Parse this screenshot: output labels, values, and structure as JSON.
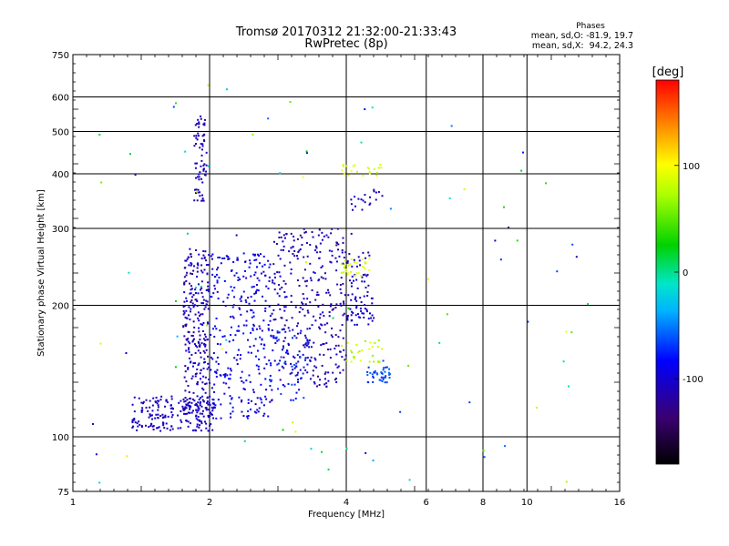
{
  "chart_data": {
    "type": "scatter",
    "title_line1": "Tromsø 20170312 21:32:00-21:33:43",
    "title_line2": "RwPretec (8p)",
    "xlabel": "Frequency [MHz]",
    "ylabel": "Stationary phase Virtual Height [km]",
    "x_scale": "log2",
    "y_scale": "log",
    "xlim": [
      1,
      16
    ],
    "ylim": [
      75,
      750
    ],
    "x_ticks": [
      1,
      2,
      4,
      6,
      8,
      10,
      16
    ],
    "y_ticks": [
      75,
      100,
      200,
      300,
      400,
      500,
      600,
      750
    ],
    "grid": true,
    "stats": {
      "heading": "Phases",
      "line_o": "mean, sd,O: -81.9, 19.7",
      "line_x": "mean, sd,X:  94.2, 24.3"
    },
    "colorbar": {
      "unit": "[deg]",
      "range": [
        -180,
        180
      ],
      "ticks": [
        100,
        0,
        -100
      ]
    },
    "clusters": [
      {
        "x": [
          1.35,
          2.05
        ],
        "y": [
          103,
          124
        ],
        "phase": [
          -115,
          -95
        ],
        "n": 200
      },
      {
        "x": [
          1.75,
          2.0
        ],
        "y": [
          115,
          270
        ],
        "phase": [
          -125,
          -90
        ],
        "n": 260
      },
      {
        "x": [
          1.85,
          1.97
        ],
        "y": [
          345,
          545
        ],
        "phase": [
          -125,
          -95
        ],
        "n": 70
      },
      {
        "x": [
          2.0,
          2.75
        ],
        "y": [
          110,
          265
        ],
        "phase": [
          -110,
          -75
        ],
        "n": 300
      },
      {
        "x": [
          2.75,
          4.0
        ],
        "y": [
          130,
          300
        ],
        "phase": [
          -125,
          -95
        ],
        "n": 330
      },
      {
        "x": [
          2.7,
          3.3
        ],
        "y": [
          120,
          175
        ],
        "phase": [
          -95,
          -60
        ],
        "n": 60
      },
      {
        "x": [
          4.0,
          4.6
        ],
        "y": [
          180,
          265
        ],
        "phase": [
          -115,
          -90
        ],
        "n": 80
      },
      {
        "x": [
          4.45,
          5.0
        ],
        "y": [
          133,
          145
        ],
        "phase": [
          -75,
          -55
        ],
        "n": 40
      },
      {
        "x": [
          3.9,
          4.8
        ],
        "y": [
          148,
          168
        ],
        "phase": [
          60,
          95
        ],
        "n": 30
      },
      {
        "x": [
          3.9,
          4.5
        ],
        "y": [
          232,
          258
        ],
        "phase": [
          75,
          100
        ],
        "n": 30
      },
      {
        "x": [
          3.9,
          4.8
        ],
        "y": [
          395,
          420
        ],
        "phase": [
          80,
          100
        ],
        "n": 20
      },
      {
        "x": [
          4.1,
          4.9
        ],
        "y": [
          330,
          370
        ],
        "phase": [
          -115,
          -95
        ],
        "n": 20
      },
      {
        "x": [
          1.05,
          14.0
        ],
        "y": [
          78,
          660
        ],
        "phase": [
          -130,
          110
        ],
        "n": 90
      }
    ]
  }
}
